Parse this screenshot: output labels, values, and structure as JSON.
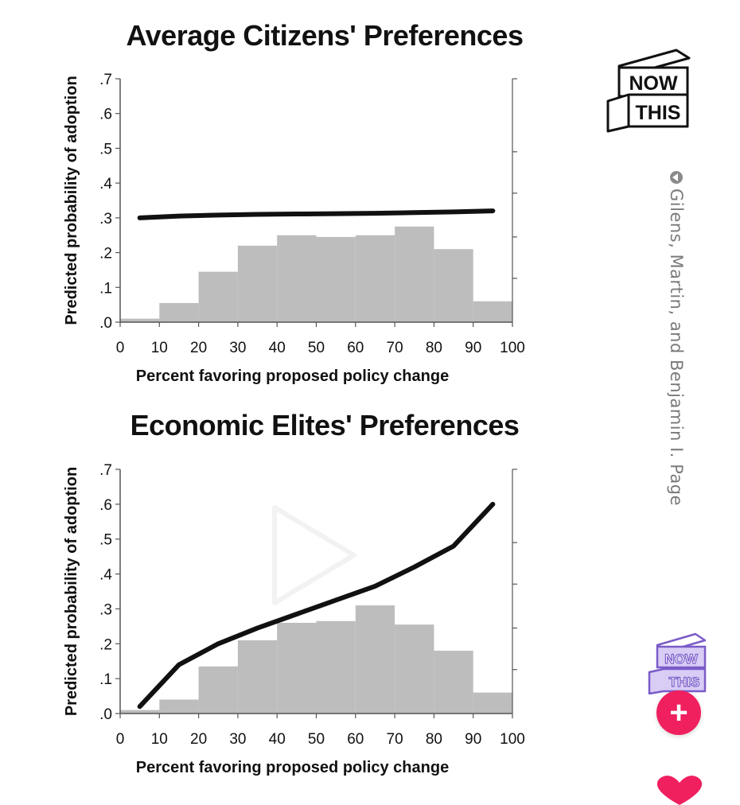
{
  "source_credit": "Gilens, Martin, and Benjamin I. Page",
  "brand": {
    "line1": "NOW",
    "line2": "THIS",
    "accent": "#9b7be0"
  },
  "follow_button": {
    "label": "+",
    "color": "#f0205f"
  },
  "colors": {
    "bars": "#bdbdbd",
    "line": "#111111",
    "axis": "#555555",
    "like": "#f0205f"
  },
  "icons": [
    "play-icon",
    "plus-icon",
    "heart-icon",
    "now-this-logo",
    "credit-arrow-icon"
  ],
  "chart_data": [
    {
      "type": "bar",
      "title": "Average Citizens' Preferences",
      "xlabel": "Percent favoring proposed policy change",
      "ylabel": "Predicted probability of adoption",
      "xlim": [
        0,
        100
      ],
      "ylim": [
        0,
        0.7
      ],
      "x_ticks": [
        "0",
        "10",
        "20",
        "30",
        "40",
        "50",
        "60",
        "70",
        "80",
        "90",
        "100"
      ],
      "y_ticks": [
        ".0",
        ".1",
        ".2",
        ".3",
        ".4",
        ".5",
        ".6",
        ".7"
      ],
      "bins": [
        [
          0,
          10
        ],
        [
          10,
          20
        ],
        [
          20,
          30
        ],
        [
          30,
          40
        ],
        [
          40,
          50
        ],
        [
          50,
          60
        ],
        [
          60,
          70
        ],
        [
          70,
          80
        ],
        [
          80,
          90
        ],
        [
          90,
          100
        ]
      ],
      "values": [
        0.01,
        0.055,
        0.145,
        0.22,
        0.25,
        0.245,
        0.25,
        0.275,
        0.21,
        0.06
      ],
      "line": {
        "x": [
          5,
          15,
          25,
          35,
          45,
          55,
          65,
          75,
          85,
          95
        ],
        "y": [
          0.3,
          0.305,
          0.308,
          0.31,
          0.311,
          0.312,
          0.313,
          0.315,
          0.317,
          0.32
        ]
      }
    },
    {
      "type": "bar",
      "title": "Economic Elites' Preferences",
      "xlabel": "Percent favoring proposed policy change",
      "ylabel": "Predicted probability of adoption",
      "xlim": [
        0,
        100
      ],
      "ylim": [
        0,
        0.7
      ],
      "x_ticks": [
        "0",
        "10",
        "20",
        "30",
        "40",
        "50",
        "60",
        "70",
        "80",
        "90",
        "100"
      ],
      "y_ticks": [
        ".0",
        ".1",
        ".2",
        ".3",
        ".4",
        ".5",
        ".6",
        ".7"
      ],
      "bins": [
        [
          0,
          10
        ],
        [
          10,
          20
        ],
        [
          20,
          30
        ],
        [
          30,
          40
        ],
        [
          40,
          50
        ],
        [
          50,
          60
        ],
        [
          60,
          70
        ],
        [
          70,
          80
        ],
        [
          80,
          90
        ],
        [
          90,
          100
        ]
      ],
      "values": [
        0.01,
        0.04,
        0.135,
        0.21,
        0.26,
        0.265,
        0.31,
        0.255,
        0.18,
        0.06
      ],
      "line": {
        "x": [
          5,
          15,
          25,
          35,
          45,
          55,
          65,
          75,
          85,
          95
        ],
        "y": [
          0.02,
          0.14,
          0.2,
          0.245,
          0.285,
          0.325,
          0.365,
          0.42,
          0.48,
          0.6
        ]
      }
    }
  ]
}
